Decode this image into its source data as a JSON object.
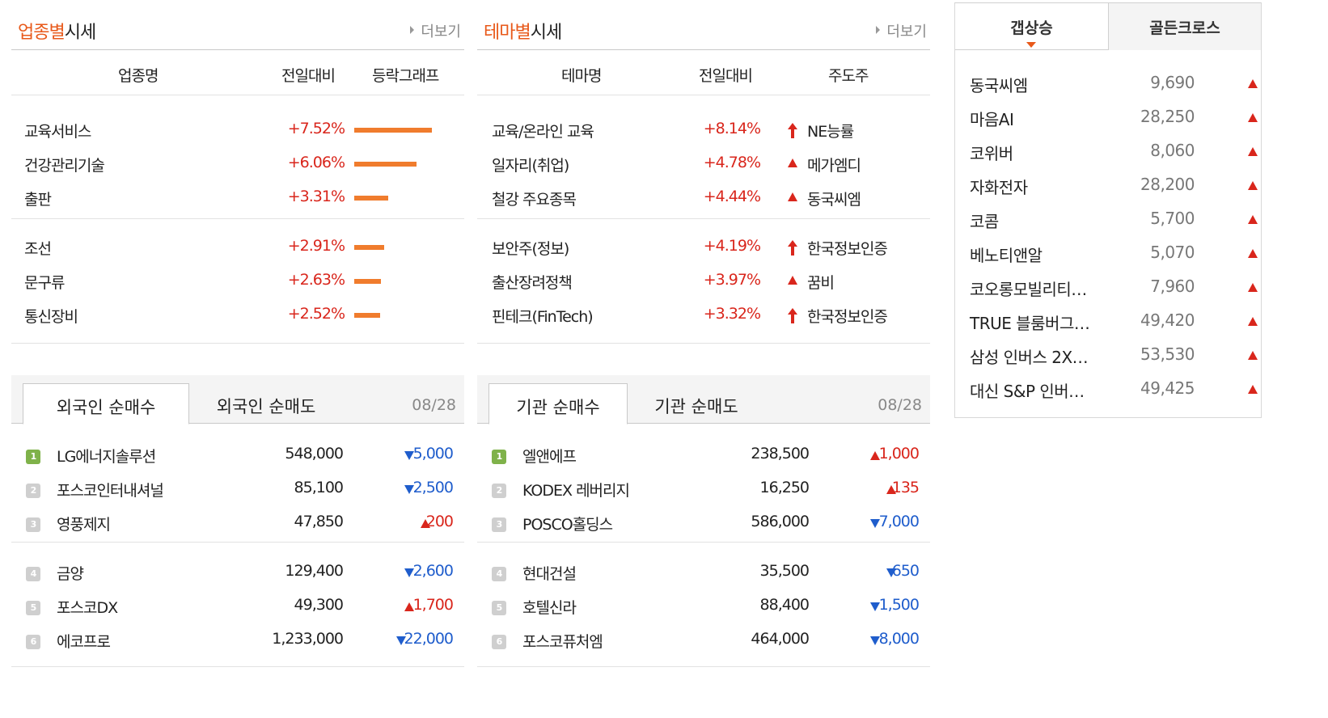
{
  "industry": {
    "title_hl": "업종별",
    "title_rest": "시세",
    "more": "더보기",
    "headers": [
      "업종명",
      "전일대비",
      "등락그래프"
    ],
    "rows": [
      {
        "name": "교육서비스",
        "change": "+7.52%",
        "bar": 7.52
      },
      {
        "name": "건강관리기술",
        "change": "+6.06%",
        "bar": 6.06
      },
      {
        "name": "출판",
        "change": "+3.31%",
        "bar": 3.31
      },
      {
        "name": "조선",
        "change": "+2.91%",
        "bar": 2.91
      },
      {
        "name": "문구류",
        "change": "+2.63%",
        "bar": 2.63
      },
      {
        "name": "통신장비",
        "change": "+2.52%",
        "bar": 2.52
      }
    ]
  },
  "theme": {
    "title_hl": "테마별",
    "title_rest": "시세",
    "more": "더보기",
    "headers": [
      "테마명",
      "전일대비",
      "주도주"
    ],
    "rows": [
      {
        "name": "교육/온라인 교육",
        "change": "+8.14%",
        "icon": "arrow-up-icon",
        "leader": "NE능률"
      },
      {
        "name": "일자리(취업)",
        "change": "+4.78%",
        "icon": "triangle-up-icon",
        "leader": "메가엠디"
      },
      {
        "name": "철강 주요종목",
        "change": "+4.44%",
        "icon": "triangle-up-icon",
        "leader": "동국씨엠"
      },
      {
        "name": "보안주(정보)",
        "change": "+4.19%",
        "icon": "arrow-up-icon",
        "leader": "한국정보인증"
      },
      {
        "name": "출산장려정책",
        "change": "+3.97%",
        "icon": "triangle-up-icon",
        "leader": "꿈비"
      },
      {
        "name": "핀테크(FinTech)",
        "change": "+3.32%",
        "icon": "arrow-up-icon",
        "leader": "한국정보인증"
      }
    ]
  },
  "foreign": {
    "tabs": [
      "외국인 순매수",
      "외국인 순매도"
    ],
    "date": "08/28",
    "rows": [
      {
        "rank": "1",
        "name": "LG에너지솔루션",
        "price": "548,000",
        "dir": "down",
        "diff": "5,000"
      },
      {
        "rank": "2",
        "name": "포스코인터내셔널",
        "price": "85,100",
        "dir": "down",
        "diff": "2,500"
      },
      {
        "rank": "3",
        "name": "영풍제지",
        "price": "47,850",
        "dir": "up",
        "diff": "200"
      },
      {
        "rank": "4",
        "name": "금양",
        "price": "129,400",
        "dir": "down",
        "diff": "2,600"
      },
      {
        "rank": "5",
        "name": "포스코DX",
        "price": "49,300",
        "dir": "up",
        "diff": "1,700"
      },
      {
        "rank": "6",
        "name": "에코프로",
        "price": "1,233,000",
        "dir": "down",
        "diff": "22,000"
      }
    ]
  },
  "institution": {
    "tabs": [
      "기관 순매수",
      "기관 순매도"
    ],
    "date": "08/28",
    "rows": [
      {
        "rank": "1",
        "name": "엘앤에프",
        "price": "238,500",
        "dir": "up",
        "diff": "1,000"
      },
      {
        "rank": "2",
        "name": "KODEX 레버리지",
        "price": "16,250",
        "dir": "up",
        "diff": "135"
      },
      {
        "rank": "3",
        "name": "POSCO홀딩스",
        "price": "586,000",
        "dir": "down",
        "diff": "7,000"
      },
      {
        "rank": "4",
        "name": "현대건설",
        "price": "35,500",
        "dir": "down",
        "diff": "650"
      },
      {
        "rank": "5",
        "name": "호텔신라",
        "price": "88,400",
        "dir": "down",
        "diff": "1,500"
      },
      {
        "rank": "6",
        "name": "포스코퓨처엠",
        "price": "464,000",
        "dir": "down",
        "diff": "8,000"
      }
    ]
  },
  "gap": {
    "tabs": [
      "갭상승",
      "골든크로스"
    ],
    "rows": [
      {
        "name": "동국씨엠",
        "value": "9,690"
      },
      {
        "name": "마음AI",
        "value": "28,250"
      },
      {
        "name": "코위버",
        "value": "8,060"
      },
      {
        "name": "자화전자",
        "value": "28,200"
      },
      {
        "name": "코콤",
        "value": "5,700"
      },
      {
        "name": "베노티앤알",
        "value": "5,070"
      },
      {
        "name": "코오롱모빌리티…",
        "value": "7,960"
      },
      {
        "name": "TRUE 블룸버그…",
        "value": "49,420"
      },
      {
        "name": "삼성 인버스 2X…",
        "value": "53,530"
      },
      {
        "name": "대신 S&P 인버…",
        "value": "49,425"
      }
    ]
  },
  "colors": {
    "up": "#d9261c",
    "down": "#1f5dcc",
    "accent": "#e8591a",
    "bar": "#f07c2d"
  }
}
